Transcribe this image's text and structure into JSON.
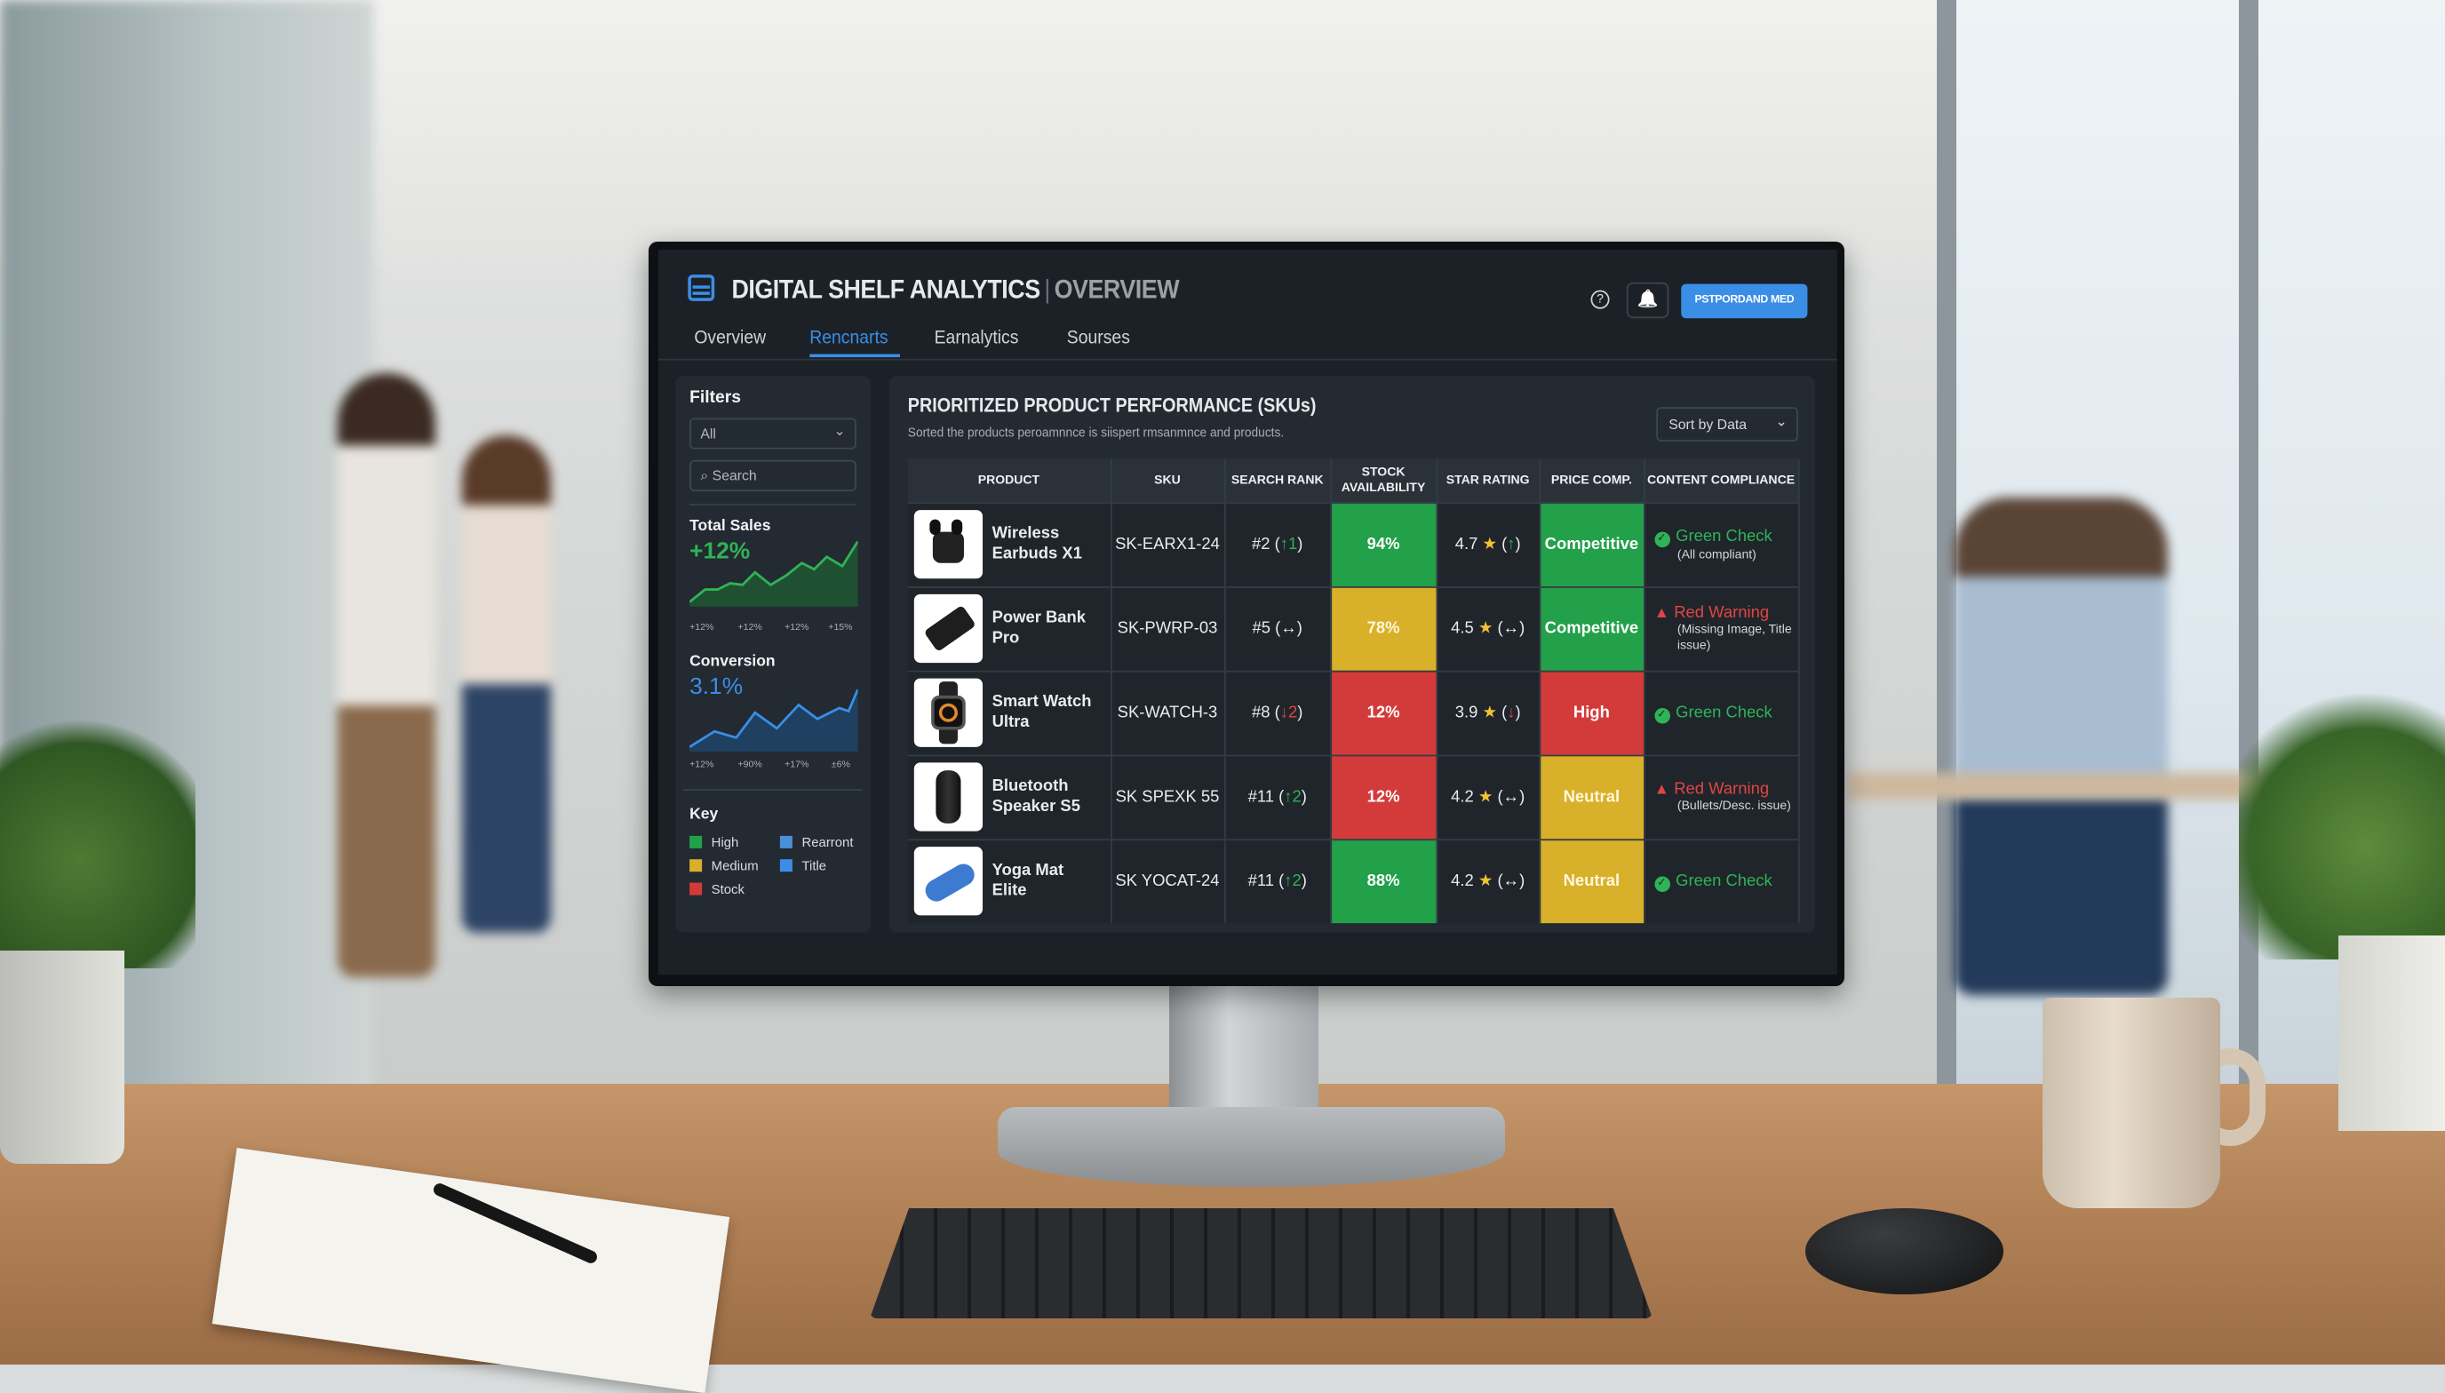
{
  "header": {
    "title": "DIGITAL SHELF ANALYTICS",
    "separator": "|",
    "subtitle": "OVERVIEW",
    "help_icon": "?",
    "bell_icon": "🔔",
    "cta_label": "PSTPORDAND MED"
  },
  "tabs": [
    {
      "label": "Overview"
    },
    {
      "label": "Rencnarts",
      "active": true
    },
    {
      "label": "Earnalytics"
    },
    {
      "label": "Sourses"
    }
  ],
  "filters": {
    "title": "Filters",
    "select_value": "All",
    "select_chevron": "⌄",
    "search_icon": "⌕",
    "search_placeholder": "Search"
  },
  "kpis": {
    "sales": {
      "label": "Total Sales",
      "value": "+12%",
      "ticks": [
        "+12%",
        "+12%",
        "+12%",
        "+15%"
      ]
    },
    "conversion": {
      "label": "Conversion",
      "value": "3.1%",
      "ticks": [
        "+12%",
        "+90%",
        "+17%",
        "±6%"
      ]
    }
  },
  "key": {
    "title": "Key",
    "items": [
      {
        "label": "High",
        "color": "#22a04a"
      },
      {
        "label": "Rearront",
        "color": "#4a8fd8"
      },
      {
        "label": "Medium",
        "color": "#d9b02a"
      },
      {
        "label": "Title",
        "color": "#3a8ee6"
      },
      {
        "label": "Stock",
        "color": "#d33b3b"
      }
    ]
  },
  "main": {
    "title": "PRIORITIZED PRODUCT PERFORMANCE (SKUs)",
    "description": "Sorted the products peroamnnce is siispert rmsanmnce and products.",
    "sort_label": "Sort by Data",
    "sort_chevron": "⌄"
  },
  "table": {
    "columns": [
      "PRODUCT",
      "SKU",
      "SEARCH RANK",
      "STOCK AVAILABILITY",
      "STAR RATING",
      "PRICE COMP.",
      "CONTENT COMPLIANCE"
    ],
    "rows": [
      {
        "product": "Wireless Earbuds X1",
        "image": "earbuds",
        "sku": "SK-EARX1-24",
        "rank": "#2",
        "rank_change": "↑1",
        "rank_trend": "up",
        "stock": "94%",
        "stock_status": "green",
        "rating": "4.7",
        "rating_trend": "↑",
        "rating_dir": "up",
        "price": "Competitive",
        "price_status": "green",
        "compliance": "Green Check",
        "compliance_status": "ok",
        "compliance_note": "(All compliant)"
      },
      {
        "product": "Power Bank Pro",
        "image": "powerbank",
        "sku": "SK-PWRP-03",
        "rank": "#5",
        "rank_change": "↔",
        "rank_trend": "flat",
        "stock": "78%",
        "stock_status": "yellow",
        "rating": "4.5",
        "rating_trend": "↔",
        "rating_dir": "flat",
        "price": "Competitive",
        "price_status": "green",
        "compliance": "Red Warning",
        "compliance_status": "warn",
        "compliance_note": "(Missing Image, Title issue)"
      },
      {
        "product": "Smart Watch Ultra",
        "image": "watch",
        "sku": "SK-WATCH-3",
        "rank": "#8",
        "rank_change": "↓2",
        "rank_trend": "down",
        "stock": "12%",
        "stock_status": "red",
        "rating": "3.9",
        "rating_trend": "↓",
        "rating_dir": "down",
        "price": "High",
        "price_status": "red",
        "compliance": "Green Check",
        "compliance_status": "ok",
        "compliance_note": ""
      },
      {
        "product": "Bluetooth Speaker S5",
        "image": "speaker",
        "sku": "SK SPEXK 55",
        "rank": "#11",
        "rank_change": "↑2",
        "rank_trend": "up",
        "stock": "12%",
        "stock_status": "red",
        "rating": "4.2",
        "rating_trend": "↔",
        "rating_dir": "flat",
        "price": "Neutral",
        "price_status": "yellow",
        "compliance": "Red Warning",
        "compliance_status": "warn",
        "compliance_note": "(Bullets/Desc. issue)"
      },
      {
        "product": "Yoga Mat Elite",
        "image": "yogamat",
        "sku": "SK YOCAT-24",
        "rank": "#11",
        "rank_change": "↑2",
        "rank_trend": "up",
        "stock": "88%",
        "stock_status": "green",
        "rating": "4.2",
        "rating_trend": "↔",
        "rating_dir": "flat",
        "price": "Neutral",
        "price_status": "yellow",
        "compliance": "Green Check",
        "compliance_status": "ok",
        "compliance_note": ""
      }
    ]
  },
  "colors": {
    "accent": "#3a8ee6",
    "good": "#22a04a",
    "medium": "#d9b02a",
    "bad": "#d33b3b",
    "background": "#1b2127"
  }
}
